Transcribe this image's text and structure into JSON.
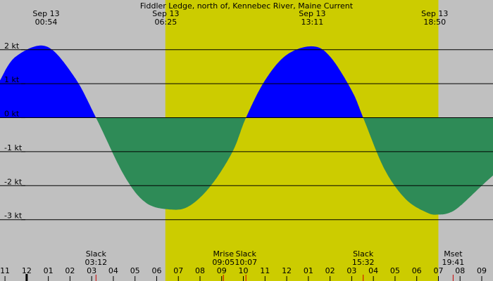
{
  "colors": {
    "background": "#c0c0c0",
    "daylight": "#cccc00",
    "flood": "#0000ff",
    "ebb": "#2e8b57",
    "grid": "#000000",
    "event_tick": "#cc0000"
  },
  "chart_data": {
    "type": "area",
    "title": "Fiddler Ledge, north of, Kennebec River, Maine Current",
    "y_unit": "kt",
    "ylim": [
      -4.35,
      3.05
    ],
    "y_ticks": [
      {
        "value": 2,
        "label": "2 kt"
      },
      {
        "value": 1,
        "label": "1 kt"
      },
      {
        "value": 0,
        "label": "0 kt"
      },
      {
        "value": -1,
        "label": "-1 kt"
      },
      {
        "value": -2,
        "label": "-2 kt"
      },
      {
        "value": -3,
        "label": "-3 kt"
      }
    ],
    "x_unit": "hours",
    "xlim": [
      10.77,
      33.52
    ],
    "hour_ticks": [
      {
        "h": 11,
        "label": "11"
      },
      {
        "h": 12,
        "label": "12"
      },
      {
        "h": 13,
        "label": "01"
      },
      {
        "h": 14,
        "label": "02"
      },
      {
        "h": 15,
        "label": "03"
      },
      {
        "h": 16,
        "label": "04"
      },
      {
        "h": 17,
        "label": "05"
      },
      {
        "h": 18,
        "label": "06"
      },
      {
        "h": 19,
        "label": "07"
      },
      {
        "h": 20,
        "label": "08"
      },
      {
        "h": 21,
        "label": "09"
      },
      {
        "h": 22,
        "label": "10"
      },
      {
        "h": 23,
        "label": "11"
      },
      {
        "h": 24,
        "label": "12"
      },
      {
        "h": 25,
        "label": "01"
      },
      {
        "h": 26,
        "label": "02"
      },
      {
        "h": 27,
        "label": "03"
      },
      {
        "h": 28,
        "label": "04"
      },
      {
        "h": 29,
        "label": "05"
      },
      {
        "h": 30,
        "label": "06"
      },
      {
        "h": 31,
        "label": "07"
      },
      {
        "h": 32,
        "label": "08"
      },
      {
        "h": 33,
        "label": "09"
      }
    ],
    "midnight_hour": 12,
    "daylight": {
      "start": 18.4,
      "end": 31.0
    },
    "series": [
      {
        "x": [
          10.77,
          11.5,
          12.9,
          14.2,
          15.2,
          16.5,
          17.5,
          18.63,
          19.5,
          20.5,
          21.5,
          22.12,
          23.0,
          24.0,
          25.18,
          26.0,
          27.0,
          27.53,
          28.5,
          29.5,
          30.5,
          31.0,
          31.5,
          32.0,
          33.0,
          33.52
        ],
        "y": [
          1.1,
          1.8,
          2.1,
          1.2,
          0.0,
          -1.7,
          -2.5,
          -2.7,
          -2.6,
          -2.0,
          -1.0,
          0.0,
          1.1,
          1.85,
          2.1,
          1.8,
          0.8,
          0.0,
          -1.5,
          -2.4,
          -2.8,
          -2.85,
          -2.8,
          -2.6,
          -2.0,
          -1.7
        ]
      }
    ],
    "top_labels": [
      {
        "h": 12.9,
        "date": "Sep 13",
        "time": "00:54"
      },
      {
        "h": 18.42,
        "date": "Sep 13",
        "time": "06:25"
      },
      {
        "h": 25.18,
        "date": "Sep 13",
        "time": "13:11"
      },
      {
        "h": 30.83,
        "date": "Sep 13",
        "time": "18:50"
      }
    ],
    "events": [
      {
        "h": 15.2,
        "label": "Slack",
        "time": "03:12"
      },
      {
        "h": 21.08,
        "label": "Mrise",
        "time": "09:05"
      },
      {
        "h": 22.12,
        "label": "Slack",
        "time": "10:07"
      },
      {
        "h": 27.53,
        "label": "Slack",
        "time": "15:32"
      },
      {
        "h": 31.68,
        "label": "Mset",
        "time": "19:41"
      }
    ]
  }
}
